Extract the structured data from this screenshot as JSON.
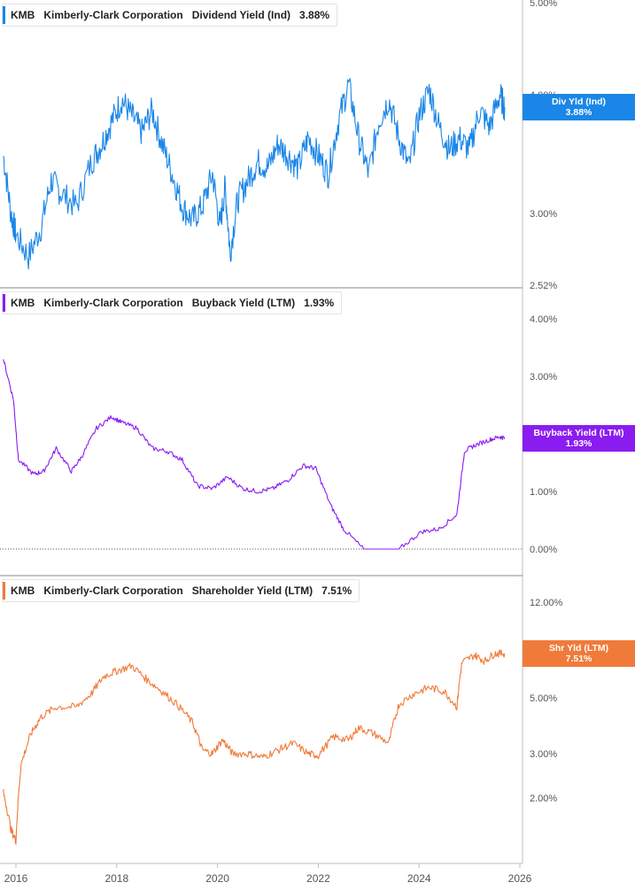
{
  "colors": {
    "dividend": "#1a86e8",
    "buyback": "#8a1cf0",
    "shareholder": "#f07a3a",
    "axis": "#bdbdbd",
    "tick_text": "#555555"
  },
  "x_axis": {
    "tick_labels": [
      "2016",
      "2018",
      "2020",
      "2022",
      "2024",
      "2026"
    ],
    "range": [
      2015.7,
      2026.3
    ]
  },
  "panels": [
    {
      "ticker": "KMB",
      "company": "Kimberly-Clark Corporation",
      "metric": "Dividend Yield (Ind)",
      "value": "3.88%",
      "tag_line1": "Div Yld (Ind)",
      "tag_line2": "3.88%",
      "tag_value": 3.88,
      "ticks": [
        {
          "label": "5.00%",
          "value": 5.0
        },
        {
          "label": "4.00%",
          "value": 4.0
        },
        {
          "label": "3.00%",
          "value": 3.0
        },
        {
          "label": "2.52%",
          "value": 2.52
        }
      ]
    },
    {
      "ticker": "KMB",
      "company": "Kimberly-Clark Corporation",
      "metric": "Buyback Yield (LTM)",
      "value": "1.93%",
      "tag_line1": "Buyback Yield (LTM)",
      "tag_line2": "1.93%",
      "tag_value": 1.93,
      "ticks": [
        {
          "label": "4.00%",
          "value": 4.0
        },
        {
          "label": "3.00%",
          "value": 3.0
        },
        {
          "label": "1.00%",
          "value": 1.0
        },
        {
          "label": "0.00%",
          "value": 0.0
        }
      ]
    },
    {
      "ticker": "KMB",
      "company": "Kimberly-Clark Corporation",
      "metric": "Shareholder Yield (LTM)",
      "value": "7.51%",
      "tag_line1": "Shr Yld (LTM)",
      "tag_line2": "7.51%",
      "tag_value": 7.51,
      "ticks": [
        {
          "label": "12.00%",
          "value": 12.0
        },
        {
          "label": "5.00%",
          "value": 5.0
        },
        {
          "label": "3.00%",
          "value": 3.0
        },
        {
          "label": "2.00%",
          "value": 2.0
        }
      ]
    }
  ],
  "chart_data": [
    {
      "type": "line",
      "title": "KMB Kimberly-Clark Corporation Dividend Yield (Ind) 3.88%",
      "ylabel": "",
      "log_scale": true,
      "ylim": [
        2.52,
        5.0
      ],
      "series": [
        {
          "name": "Dividend Yield (Ind)",
          "x": [
            2015.75,
            2015.9,
            2016.0,
            2016.25,
            2016.5,
            2016.7,
            2016.9,
            2017.2,
            2017.5,
            2017.7,
            2017.9,
            2018.1,
            2018.3,
            2018.5,
            2018.7,
            2018.9,
            2019.1,
            2019.3,
            2019.5,
            2019.7,
            2019.9,
            2020.05,
            2020.15,
            2020.25,
            2020.4,
            2020.6,
            2020.8,
            2021.0,
            2021.2,
            2021.4,
            2021.6,
            2021.8,
            2022.0,
            2022.2,
            2022.4,
            2022.6,
            2022.8,
            2023.0,
            2023.2,
            2023.4,
            2023.6,
            2023.8,
            2024.0,
            2024.2,
            2024.4,
            2024.6,
            2024.8,
            2025.0,
            2025.2,
            2025.4,
            2025.6,
            2025.7
          ],
          "values": [
            3.45,
            3.0,
            2.85,
            2.7,
            2.9,
            3.25,
            3.15,
            3.05,
            3.4,
            3.55,
            3.75,
            3.95,
            3.8,
            3.65,
            3.85,
            3.55,
            3.3,
            3.05,
            2.95,
            3.05,
            3.3,
            2.9,
            3.2,
            2.72,
            3.1,
            3.25,
            3.4,
            3.35,
            3.55,
            3.45,
            3.35,
            3.6,
            3.45,
            3.3,
            3.75,
            4.1,
            3.6,
            3.3,
            3.75,
            3.95,
            3.6,
            3.35,
            3.8,
            4.05,
            3.7,
            3.5,
            3.6,
            3.5,
            3.85,
            3.7,
            4.0,
            3.88
          ]
        }
      ]
    },
    {
      "type": "line",
      "title": "KMB Kimberly-Clark Corporation Buyback Yield (LTM) 1.93%",
      "ylabel": "",
      "ylim": [
        0.0,
        4.0
      ],
      "series": [
        {
          "name": "Buyback Yield (LTM)",
          "x": [
            2015.75,
            2015.95,
            2016.05,
            2016.35,
            2016.55,
            2016.8,
            2017.1,
            2017.3,
            2017.6,
            2017.9,
            2018.1,
            2018.4,
            2018.7,
            2019.0,
            2019.3,
            2019.6,
            2019.9,
            2020.2,
            2020.5,
            2020.8,
            2021.1,
            2021.4,
            2021.7,
            2021.95,
            2022.25,
            2022.5,
            2022.9,
            2023.3,
            2023.6,
            2024.05,
            2024.4,
            2024.75,
            2024.9,
            2025.1,
            2025.4,
            2025.6,
            2025.7
          ],
          "values": [
            3.3,
            2.6,
            1.55,
            1.3,
            1.35,
            1.75,
            1.35,
            1.6,
            2.1,
            2.3,
            2.2,
            2.1,
            1.75,
            1.7,
            1.55,
            1.1,
            1.05,
            1.25,
            1.05,
            1.0,
            1.05,
            1.2,
            1.45,
            1.4,
            0.75,
            0.35,
            0.0,
            0.0,
            0.0,
            0.3,
            0.35,
            0.6,
            1.7,
            1.8,
            1.9,
            1.95,
            1.93
          ]
        }
      ]
    },
    {
      "type": "line",
      "title": "KMB Kimberly-Clark Corporation Shareholder Yield (LTM) 7.51%",
      "ylabel": "",
      "log_scale": true,
      "ylim": [
        1.4,
        12.0
      ],
      "series": [
        {
          "name": "Shareholder Yield (LTM)",
          "x": [
            2015.75,
            2015.9,
            2016.0,
            2016.1,
            2016.3,
            2016.5,
            2016.8,
            2017.2,
            2017.5,
            2017.75,
            2018.0,
            2018.3,
            2018.6,
            2018.9,
            2019.2,
            2019.5,
            2019.7,
            2019.9,
            2020.1,
            2020.3,
            2020.6,
            2020.9,
            2021.2,
            2021.5,
            2021.8,
            2022.0,
            2022.3,
            2022.6,
            2022.8,
            2023.1,
            2023.4,
            2023.6,
            2023.9,
            2024.2,
            2024.5,
            2024.75,
            2024.85,
            2025.1,
            2025.3,
            2025.5,
            2025.7
          ],
          "values": [
            2.1,
            1.5,
            1.35,
            2.7,
            3.6,
            4.2,
            4.6,
            4.6,
            5.2,
            6.1,
            6.4,
            6.7,
            5.9,
            5.3,
            4.7,
            4.0,
            3.1,
            3.0,
            3.4,
            3.0,
            3.0,
            2.9,
            3.1,
            3.3,
            3.0,
            2.95,
            3.5,
            3.4,
            3.8,
            3.6,
            3.3,
            4.7,
            5.2,
            5.5,
            5.3,
            4.6,
            6.9,
            7.4,
            7.0,
            7.5,
            7.51
          ]
        }
      ]
    }
  ]
}
